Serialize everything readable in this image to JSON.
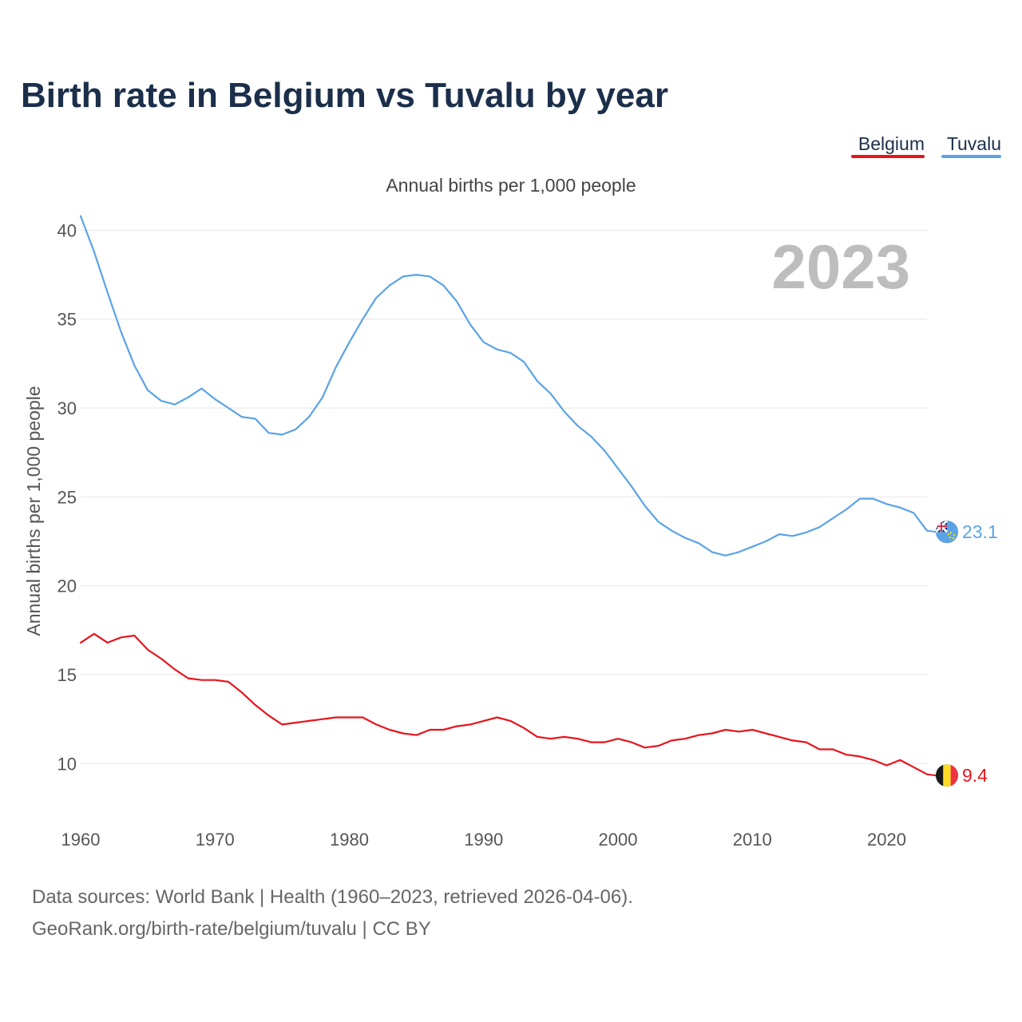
{
  "chart_data": {
    "type": "line",
    "title": "Birth rate in Belgium vs Tuvalu by year",
    "subtitle": "Annual births per 1,000 people",
    "ylabel": "Annual births per 1,000 people",
    "xlabel": "",
    "current_year": "2023",
    "xlim": [
      1960,
      2023
    ],
    "ylim": [
      7.5,
      41.5
    ],
    "x_ticks": [
      1960,
      1970,
      1980,
      1990,
      2000,
      2010,
      2020
    ],
    "y_ticks": [
      10,
      15,
      20,
      25,
      30,
      35,
      40
    ],
    "grid": true,
    "legend": "top-right",
    "x": [
      1960,
      1961,
      1962,
      1963,
      1964,
      1965,
      1966,
      1967,
      1968,
      1969,
      1970,
      1971,
      1972,
      1973,
      1974,
      1975,
      1976,
      1977,
      1978,
      1979,
      1980,
      1981,
      1982,
      1983,
      1984,
      1985,
      1986,
      1987,
      1988,
      1989,
      1990,
      1991,
      1992,
      1993,
      1994,
      1995,
      1996,
      1997,
      1998,
      1999,
      2000,
      2001,
      2002,
      2003,
      2004,
      2005,
      2006,
      2007,
      2008,
      2009,
      2010,
      2011,
      2012,
      2013,
      2014,
      2015,
      2016,
      2017,
      2018,
      2019,
      2020,
      2021,
      2022,
      2023
    ],
    "series": [
      {
        "name": "Tuvalu",
        "color": "#5ba3e6",
        "end_label": "23.1",
        "flag_icon": "tuvalu-flag-icon",
        "values": [
          40.8,
          38.8,
          36.5,
          34.3,
          32.4,
          31.0,
          30.4,
          30.2,
          30.6,
          31.1,
          30.5,
          30.0,
          29.5,
          29.4,
          28.6,
          28.5,
          28.8,
          29.5,
          30.6,
          32.3,
          33.7,
          35.0,
          36.2,
          36.9,
          37.4,
          37.5,
          37.4,
          36.9,
          36.0,
          34.7,
          33.7,
          33.3,
          33.1,
          32.6,
          31.5,
          30.8,
          29.8,
          29.0,
          28.4,
          27.6,
          26.6,
          25.6,
          24.5,
          23.6,
          23.1,
          22.7,
          22.4,
          21.9,
          21.7,
          21.9,
          22.2,
          22.5,
          22.9,
          22.8,
          23.0,
          23.3,
          23.8,
          24.3,
          24.9,
          24.9,
          24.6,
          24.4,
          24.1,
          23.1
        ]
      },
      {
        "name": "Belgium",
        "color": "#e8141c",
        "end_label": "9.4",
        "flag_icon": "belgium-flag-icon",
        "values": [
          16.8,
          17.3,
          16.8,
          17.1,
          17.2,
          16.4,
          15.9,
          15.3,
          14.8,
          14.7,
          14.7,
          14.6,
          14.0,
          13.3,
          12.7,
          12.2,
          12.3,
          12.4,
          12.5,
          12.6,
          12.6,
          12.6,
          12.2,
          11.9,
          11.7,
          11.6,
          11.9,
          11.9,
          12.1,
          12.2,
          12.4,
          12.6,
          12.4,
          12.0,
          11.5,
          11.4,
          11.5,
          11.4,
          11.2,
          11.2,
          11.4,
          11.2,
          10.9,
          11.0,
          11.3,
          11.4,
          11.6,
          11.7,
          11.9,
          11.8,
          11.9,
          11.7,
          11.5,
          11.3,
          11.2,
          10.8,
          10.8,
          10.5,
          10.4,
          10.2,
          9.9,
          10.2,
          9.8,
          9.4
        ]
      }
    ],
    "legend_items": [
      {
        "name": "Belgium",
        "color": "#e8141c"
      },
      {
        "name": "Tuvalu",
        "color": "#5ba3e6"
      }
    ]
  },
  "source": {
    "line1": "Data sources: World Bank | Health (1960–2023, retrieved 2026-04-06).",
    "line2": "GeoRank.org/birth-rate/belgium/tuvalu | CC BY"
  }
}
